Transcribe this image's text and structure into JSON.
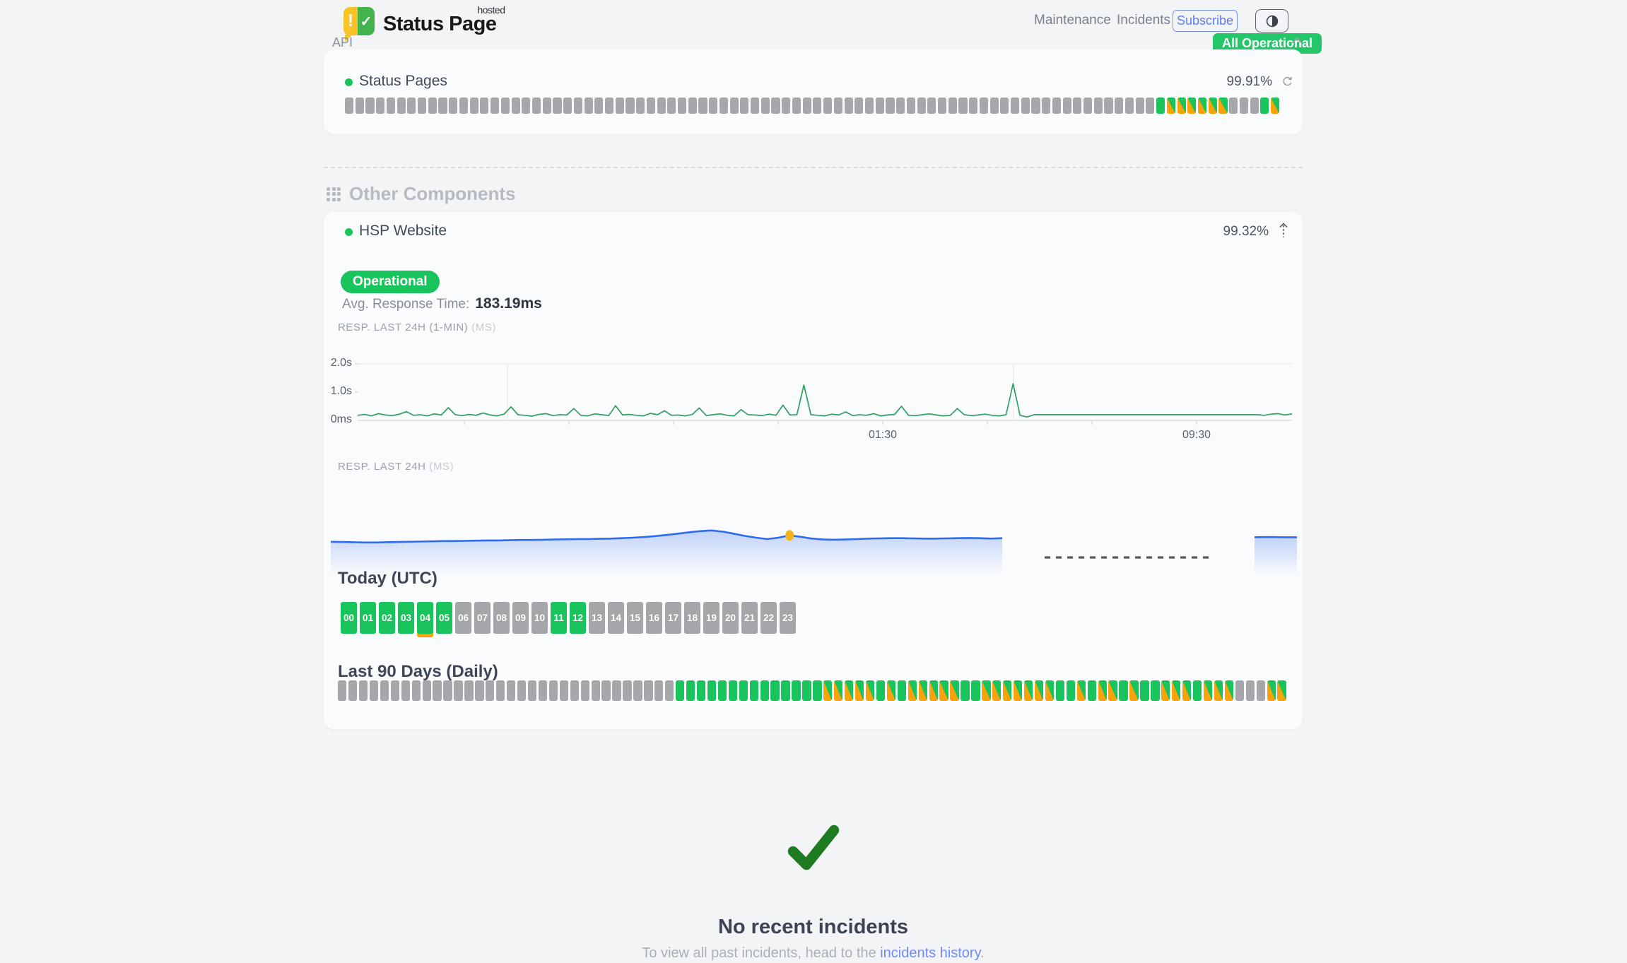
{
  "header": {
    "logo": {
      "brand": "Status Page",
      "superscript": "hosted",
      "icon_exclamation": "!",
      "icon_check": "✓"
    },
    "nav": {
      "maintenance": "Maintenance",
      "incidents": "Incidents",
      "subscribe": "Subscribe"
    },
    "status_badge": "All Operational"
  },
  "colors": {
    "operational_green": "#18c45b",
    "partial_orange": "#f7a309",
    "nodata_gray": "#a6a7ab",
    "badge_green": "#23c76a",
    "subscribe_blue": "#5f7bf3",
    "link_blue": "#6e8bfb",
    "chart_line_green": "#2f9e5f",
    "chart_line_blue": "#2e6bee",
    "marker_yellow": "#f4b41e",
    "check_green": "#1e7b22",
    "page_bg": "#f3f4f6",
    "card_bg": "#fafbfc"
  },
  "bar_state_legend": {
    "u": "no-data",
    "g": "operational",
    "s": "partial-outage"
  },
  "api_group": {
    "label": "API",
    "component": {
      "name": "Status Pages",
      "uptime": "99.91%",
      "bars": "uuuuuuuuuuuuuuuuuuuuuuuuuuuuuuuuuuuuuuuuuuuuuuuuuuuuuuuuuuuuuuuuuuuuuuuuuuuuuugssssssuuugs"
    }
  },
  "other_components": {
    "title": "Other Components",
    "component": {
      "name": "HSP Website",
      "uptime": "99.32%",
      "status": "Operational",
      "avg_response_label": "Avg. Response Time:",
      "avg_response_value": "183.19ms"
    }
  },
  "chart_data": [
    {
      "type": "line",
      "title": "RESP. LAST 24H (1-MIN)",
      "unit": "(MS)",
      "ylabel_ticks": [
        "2.0s",
        "1.0s",
        "0ms"
      ],
      "ylim_ms": [
        0,
        2000
      ],
      "xticks": [
        "01:30",
        "09:30"
      ],
      "line_color": "#2f9e5f",
      "values_ms": [
        180,
        210,
        160,
        240,
        190,
        170,
        220,
        310,
        180,
        200,
        160,
        230,
        190,
        450,
        200,
        170,
        210,
        180,
        260,
        190,
        160,
        220,
        480,
        200,
        180,
        150,
        210,
        240,
        170,
        200,
        190,
        420,
        180,
        160,
        230,
        200,
        170,
        520,
        190,
        210,
        180,
        160,
        250,
        200,
        340,
        180,
        190,
        160,
        210,
        440,
        170,
        200,
        230,
        180,
        160,
        380,
        200,
        190,
        170,
        220,
        180,
        540,
        190,
        200,
        1250,
        200,
        180,
        160,
        220,
        190,
        300,
        170,
        200,
        180,
        240,
        160,
        190,
        210,
        500,
        180,
        170,
        200,
        230,
        190,
        160,
        180,
        420,
        200,
        170,
        190,
        220,
        180,
        160,
        200,
        1300,
        180,
        120,
        200,
        200,
        200,
        200,
        200,
        200,
        200,
        200,
        200,
        200,
        200,
        200,
        200,
        200,
        200,
        200,
        200,
        200,
        200,
        200,
        200,
        200,
        200,
        200,
        200,
        200,
        200,
        200,
        200,
        200,
        200,
        200,
        200,
        180,
        220,
        240,
        190,
        230
      ]
    },
    {
      "type": "area",
      "title": "RESP. LAST 24H",
      "unit": "(MS)",
      "ylim_ms": [
        0,
        400
      ],
      "line_color": "#2e6bee",
      "marker_color": "#f4b41e",
      "marker_index": 41,
      "values_ms": [
        160,
        159,
        158,
        157,
        157,
        158,
        159,
        160,
        161,
        162,
        163,
        163,
        164,
        165,
        166,
        166,
        167,
        168,
        168,
        169,
        170,
        171,
        172,
        172,
        173,
        174,
        176,
        178,
        181,
        185,
        190,
        196,
        202,
        207,
        210,
        205,
        196,
        186,
        178,
        172,
        178,
        188,
        182,
        174,
        170,
        169,
        170,
        172,
        174,
        175,
        176,
        176,
        175,
        174,
        174,
        175,
        176,
        177,
        176,
        174,
        176
      ],
      "no_data_gap": true,
      "tail_values_ms": [
        180,
        181,
        180,
        180
      ]
    }
  ],
  "today": {
    "title": "Today (UTC)",
    "hours": [
      "00",
      "01",
      "02",
      "03",
      "04",
      "05",
      "06",
      "07",
      "08",
      "09",
      "10",
      "11",
      "12",
      "13",
      "14",
      "15",
      "16",
      "17",
      "18",
      "19",
      "20",
      "21",
      "22",
      "23"
    ],
    "states": "ggggoguuuuugguuuuuuuuuuu"
  },
  "last90": {
    "title": "Last 90 Days (Daily)",
    "bars": "uuuuuuuuuuuuuuuuuuuuuuuuuuuuuuuuggggggggggggg33gsssssgsgsssssggsssssssggsgssgsggsssgsssuuuss"
  },
  "last90_bars_clean": "uuuuuuuuuuuuuuuuuuuuuuuuuuuuuuuuggggggggggggggsssssgsgsssssggsssssssggsgssgsggsssgsssuuuss",
  "incidents": {
    "title": "No recent incidents",
    "prefix": "To view all past incidents, head to the ",
    "link": "incidents history",
    "suffix": "."
  }
}
